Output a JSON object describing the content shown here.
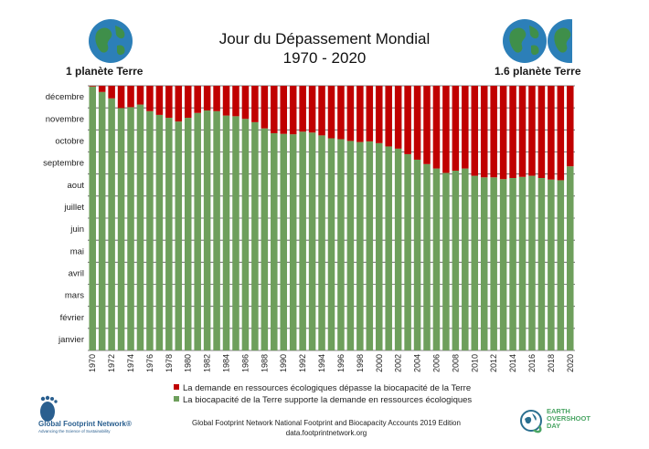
{
  "title_line1": "Jour du Dépassement Mondial",
  "title_line2": "1970 - 2020",
  "left_label": "1 planète Terre",
  "right_label": "1.6 planète Terre",
  "legend": {
    "red_label": "La demande en ressources écologiques dépasse la biocapacité de la Terre",
    "green_label": "La biocapacité de la Terre supporte la demande en ressources écologiques"
  },
  "source_line1": "Global Footprint Network National Footprint and Biocapacity Accounts 2019 Edition",
  "source_line2": "data.footprintnetwork.org",
  "gfn_name": "Global Footprint Network®",
  "gfn_tagline": "Advancing the Science of Sustainability",
  "eod_text": "EARTH\nOVERSHOOT\nDAY",
  "colors": {
    "red": "#c00000",
    "green": "#6e9f5c",
    "globe_ocean": "#2c7fb8",
    "globe_land": "#3f8f4a"
  },
  "chart_data": {
    "type": "bar",
    "stacked": true,
    "x": [
      1970,
      1971,
      1972,
      1973,
      1974,
      1975,
      1976,
      1977,
      1978,
      1979,
      1980,
      1981,
      1982,
      1983,
      1984,
      1985,
      1986,
      1987,
      1988,
      1989,
      1990,
      1991,
      1992,
      1993,
      1994,
      1995,
      1996,
      1997,
      1998,
      1999,
      2000,
      2001,
      2002,
      2003,
      2004,
      2005,
      2006,
      2007,
      2008,
      2009,
      2010,
      2011,
      2012,
      2013,
      2014,
      2015,
      2016,
      2017,
      2018,
      2019,
      2020
    ],
    "x_tick_labels": [
      "1970",
      "1972",
      "1974",
      "1976",
      "1978",
      "1980",
      "1982",
      "1984",
      "1986",
      "1988",
      "1990",
      "1992",
      "1994",
      "1996",
      "1998",
      "2000",
      "2002",
      "2004",
      "2006",
      "2008",
      "2010",
      "2012",
      "2014",
      "2016",
      "2018",
      "2020"
    ],
    "y_categories": [
      "janvier",
      "février",
      "mars",
      "avril",
      "mai",
      "juin",
      "juillet",
      "aout",
      "septembre",
      "octobre",
      "novembre",
      "décembre"
    ],
    "y_unit": "month",
    "ylim": [
      0,
      12
    ],
    "series": [
      {
        "name": "La biocapacité de la Terre supporte la demande en ressources écologiques",
        "color": "#6e9f5c",
        "values": [
          11.97,
          11.72,
          11.43,
          10.99,
          11.03,
          11.15,
          10.85,
          10.68,
          10.55,
          10.38,
          10.55,
          10.77,
          10.88,
          10.85,
          10.65,
          10.62,
          10.5,
          10.35,
          10.07,
          9.85,
          9.82,
          9.8,
          9.92,
          9.88,
          9.75,
          9.62,
          9.58,
          9.5,
          9.45,
          9.48,
          9.4,
          9.25,
          9.15,
          8.9,
          8.65,
          8.45,
          8.25,
          8.05,
          8.15,
          8.25,
          7.92,
          7.85,
          7.85,
          7.77,
          7.82,
          7.87,
          7.92,
          7.82,
          7.75,
          7.72,
          8.35
        ]
      },
      {
        "name": "La demande en ressources écologiques dépasse la biocapacité de la Terre",
        "color": "#c00000",
        "values": [
          0.03,
          0.28,
          0.57,
          1.01,
          0.97,
          0.85,
          1.15,
          1.32,
          1.45,
          1.62,
          1.45,
          1.23,
          1.12,
          1.15,
          1.35,
          1.38,
          1.5,
          1.65,
          1.93,
          2.15,
          2.18,
          2.2,
          2.08,
          2.12,
          2.25,
          2.38,
          2.42,
          2.5,
          2.55,
          2.52,
          2.6,
          2.75,
          2.85,
          3.1,
          3.35,
          3.55,
          3.75,
          3.95,
          3.85,
          3.75,
          4.08,
          4.15,
          4.15,
          4.23,
          4.18,
          4.13,
          4.08,
          4.18,
          4.25,
          4.28,
          3.65
        ]
      }
    ],
    "grid": true,
    "legend_placement": "bottom"
  }
}
